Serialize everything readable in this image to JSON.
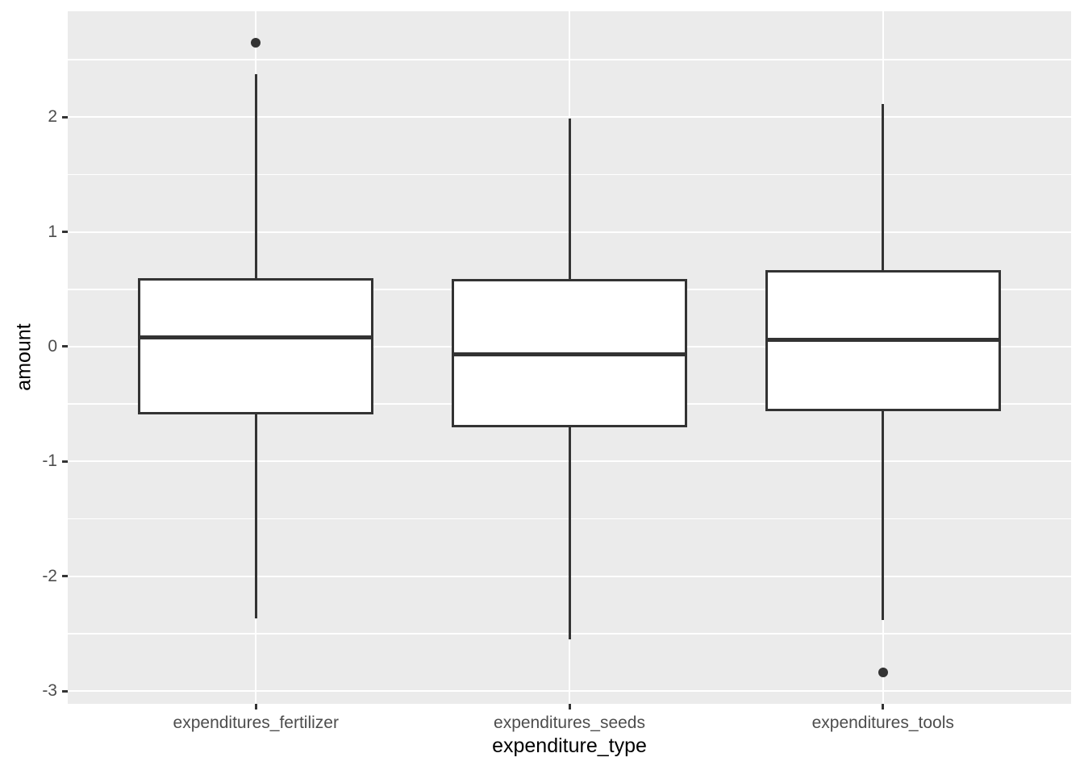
{
  "chart_data": {
    "type": "boxplot",
    "title": "",
    "xlabel": "expenditure_type",
    "ylabel": "amount",
    "categories": [
      "expenditures_fertilizer",
      "expenditures_seeds",
      "expenditures_tools"
    ],
    "series": [
      {
        "name": "expenditures_fertilizer",
        "whisker_low": -2.37,
        "q1": -0.59,
        "median": 0.08,
        "q3": 0.6,
        "whisker_high": 2.37,
        "outliers": [
          2.65
        ]
      },
      {
        "name": "expenditures_seeds",
        "whisker_low": -2.55,
        "q1": -0.7,
        "median": -0.07,
        "q3": 0.59,
        "whisker_high": 1.99,
        "outliers": []
      },
      {
        "name": "expenditures_tools",
        "whisker_low": -2.38,
        "q1": -0.56,
        "median": 0.06,
        "q3": 0.67,
        "whisker_high": 2.11,
        "outliers": [
          -2.84
        ]
      }
    ],
    "yticks": [
      -3,
      -2,
      -1,
      0,
      1,
      2
    ],
    "ytick_labels": [
      "-3",
      "-2",
      "-1",
      "0",
      "1",
      "2"
    ],
    "yminor": [
      -2.5,
      -1.5,
      -0.5,
      0.5,
      1.5,
      2.5
    ],
    "ylim": [
      -3.11,
      2.92
    ],
    "box_width_ratio": 0.75,
    "grid": "horizontal major+minor, vertical major at categories",
    "legend": "none",
    "style": {
      "panel_bg": "#EBEBEB",
      "grid_color": "#FFFFFF",
      "box_fill": "#FFFFFF",
      "stroke": "#333333",
      "tick_label_color": "#4D4D4D",
      "axis_title_color": "#000000"
    }
  }
}
